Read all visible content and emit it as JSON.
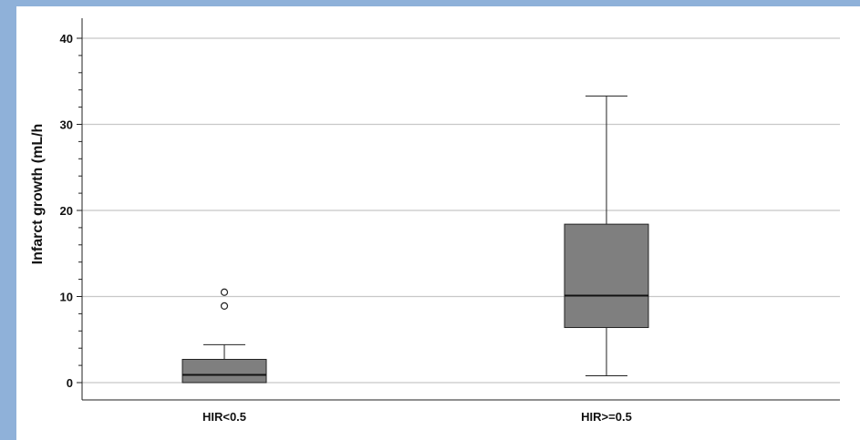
{
  "chart_data": {
    "type": "boxplot",
    "title": "",
    "xlabel": "",
    "ylabel": "Infarct growth (mL/h",
    "ylim": [
      0,
      41
    ],
    "yticks": [
      0,
      10,
      20,
      30,
      40
    ],
    "grid": true,
    "categories": [
      "HIR<0.5",
      "HIR>=0.5"
    ],
    "boxes": [
      {
        "category": "HIR<0.5",
        "whisker_low": 0.0,
        "q1": 0.0,
        "median": 0.9,
        "q3": 2.7,
        "whisker_high": 4.4,
        "outliers": [
          8.9,
          10.5
        ]
      },
      {
        "category": "HIR>=0.5",
        "whisker_low": 0.8,
        "q1": 6.4,
        "median": 10.1,
        "q3": 18.4,
        "whisker_high": 33.3,
        "outliers": []
      }
    ],
    "colors": {
      "frame": "#8fb1d9",
      "box_fill": "#7f7f7f",
      "grid": "#c8c8c8",
      "axis": "#222222"
    }
  }
}
